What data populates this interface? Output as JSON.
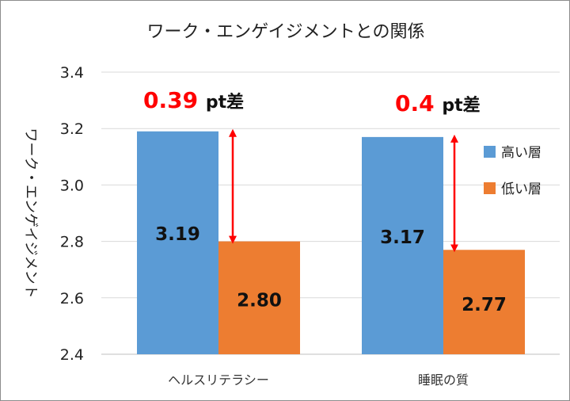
{
  "chart_data": {
    "type": "bar",
    "title": "ワーク・エンゲイジメントとの関係",
    "ylabel": "ワーク・エンゲイジメント",
    "xlabel": "",
    "ylim": [
      2.4,
      3.4
    ],
    "yticks": [
      "2.4",
      "2.6",
      "2.8",
      "3.0",
      "3.2",
      "3.4"
    ],
    "categories": [
      "ヘルスリテラシー",
      "睡眠の質"
    ],
    "series": [
      {
        "name": "高い層",
        "values": [
          3.19,
          3.17
        ],
        "labels": [
          "3.19",
          "3.17"
        ],
        "color": "#5b9bd5"
      },
      {
        "name": "低い層",
        "values": [
          2.8,
          2.77
        ],
        "labels": [
          "2.80",
          "2.77"
        ],
        "color": "#ed7d31"
      }
    ],
    "annotations": [
      {
        "number": "0.39",
        "unit": "pt差"
      },
      {
        "number": "0.4",
        "unit": "pt差"
      }
    ],
    "annotation_color": "#ff0000",
    "legend_position": "right"
  }
}
